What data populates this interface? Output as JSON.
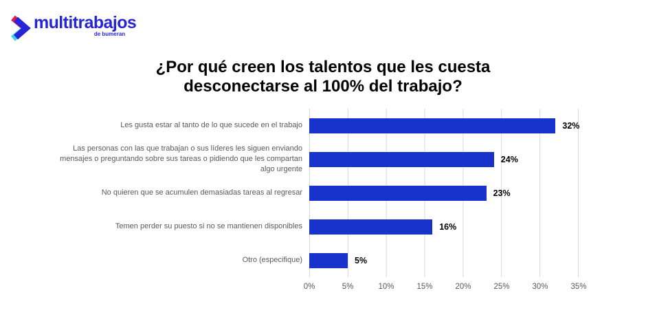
{
  "logo": {
    "brand": "multitrabajos",
    "sub_brand": "de bumeran",
    "colors": {
      "text": "#2526d9",
      "chevron_red": "#e31949",
      "chevron_blue": "#2526d9",
      "chevron_cyan": "#38d2e6"
    }
  },
  "title": "¿Por qué creen los talentos que les cuesta desconectarse al 100% del trabajo?",
  "chart_data": {
    "type": "bar",
    "orientation": "horizontal",
    "title": "¿Por qué creen los talentos que les cuesta desconectarse al 100% del trabajo?",
    "categories": [
      "Les gusta estar al tanto de lo que sucede en el trabajo",
      "Las personas con las que trabajan o sus líderes les siguen enviando mensajes o preguntando sobre sus tareas o pidiendo que les compartan algo urgente",
      "No quieren que se acumulen demasiadas tareas al regresar",
      "Temen perder su puesto si no se mantienen disponibles",
      "Otro (especifique)"
    ],
    "values": [
      32,
      24,
      23,
      16,
      5
    ],
    "value_labels": [
      "32%",
      "24%",
      "23%",
      "16%",
      "5%"
    ],
    "x_ticks": [
      "0%",
      "5%",
      "10%",
      "15%",
      "20%",
      "25%",
      "30%",
      "35%"
    ],
    "xlim": [
      0,
      35
    ],
    "grid": true,
    "legend": false,
    "bar_color": "#1733cc",
    "gridline_color": "#d9d9d9",
    "category_color": "#595959",
    "tick_color": "#595959",
    "value_label_color": "#000000"
  }
}
